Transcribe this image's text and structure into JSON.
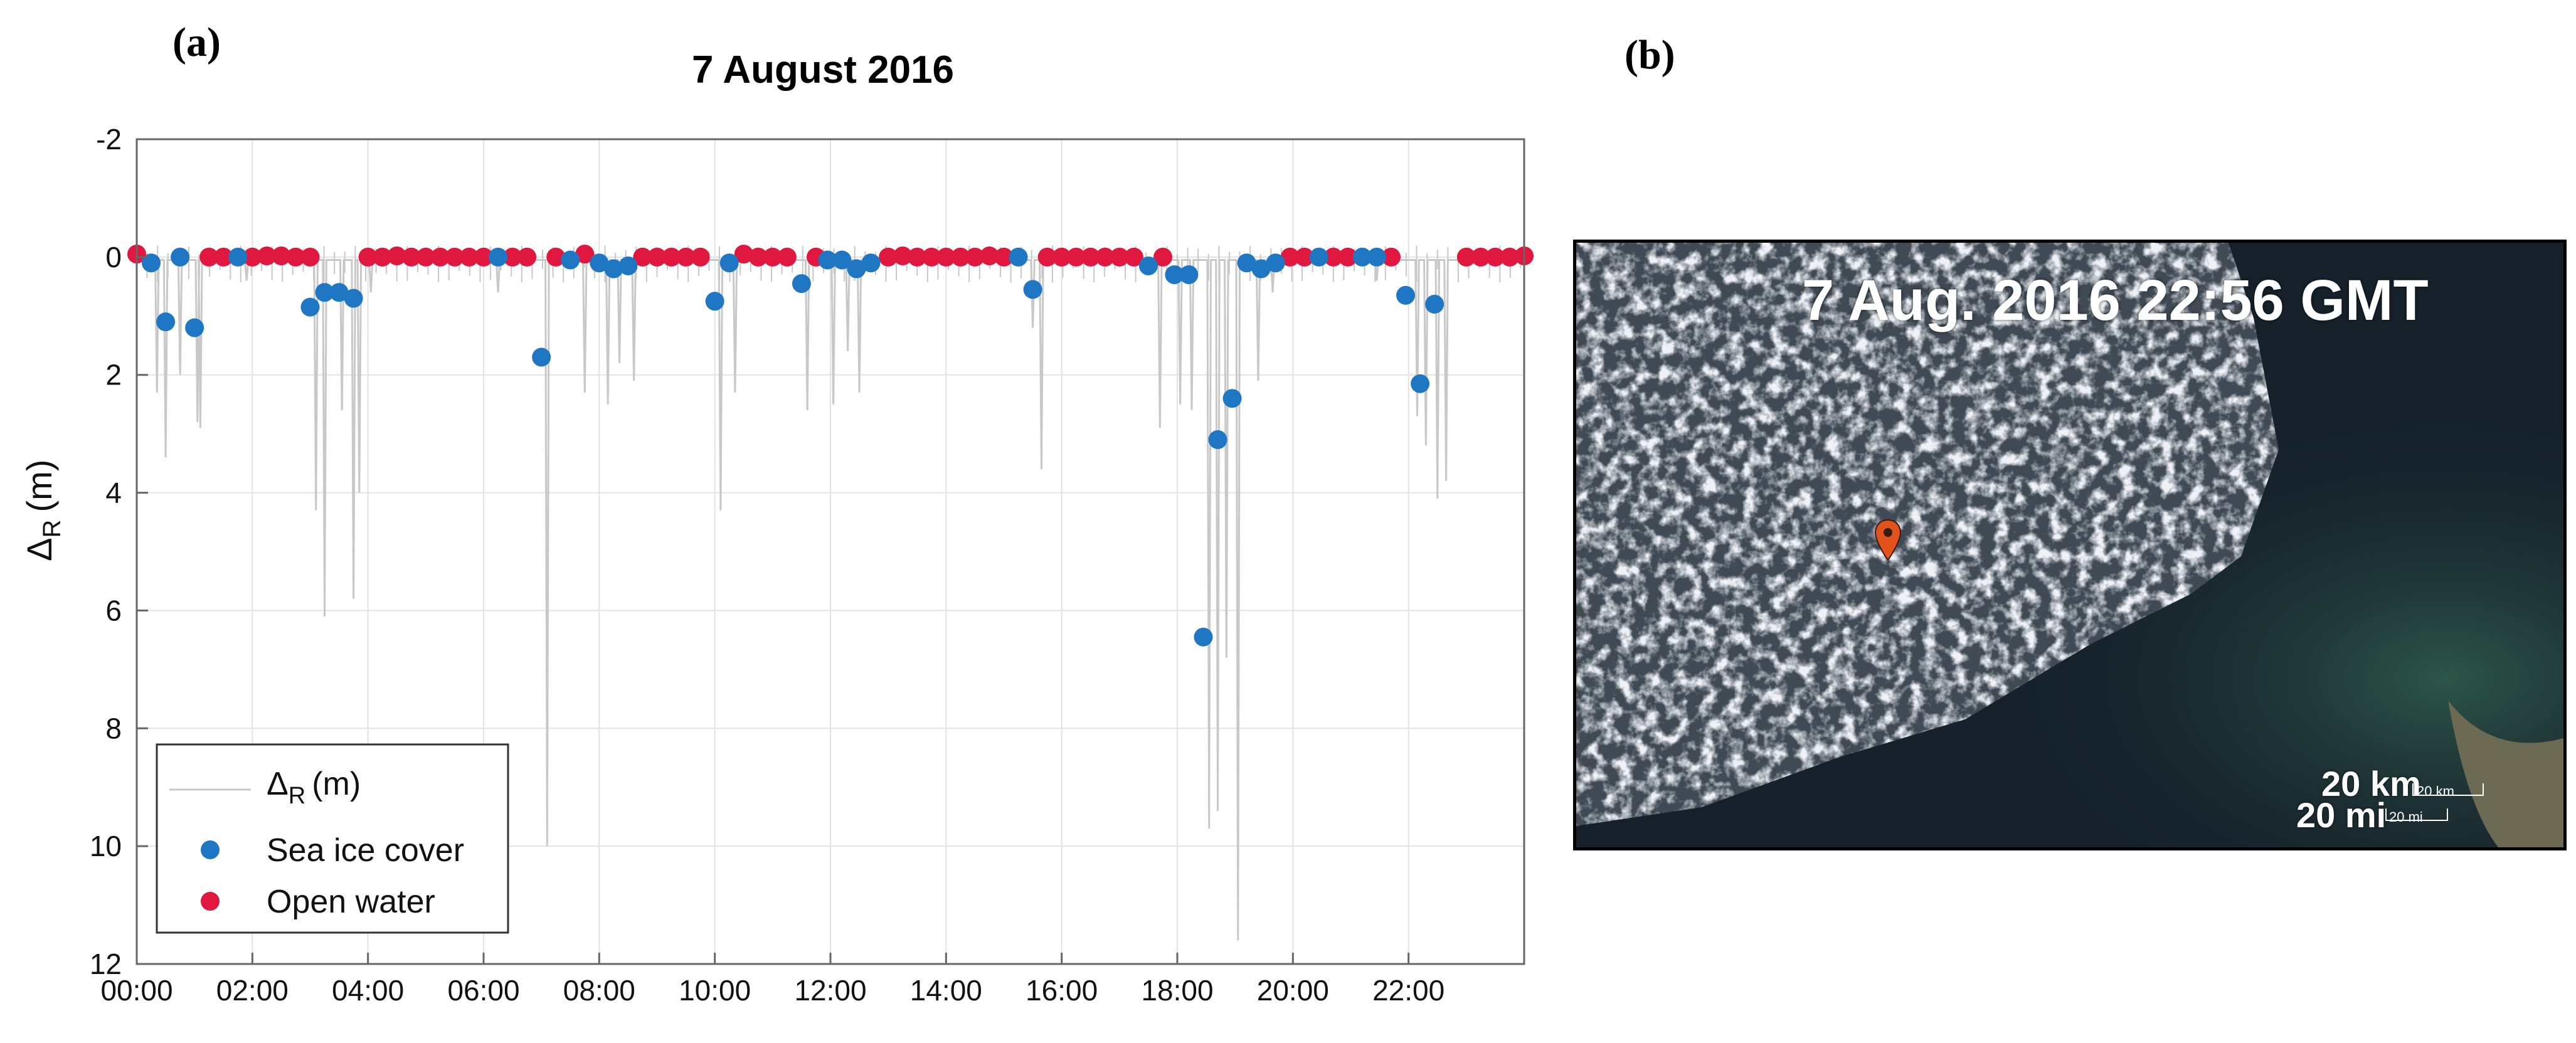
{
  "panel_a_label": "(a)",
  "panel_b_label": "(b)",
  "chart_data": {
    "type": "scatter",
    "title": "7 August 2016",
    "xlabel": "",
    "ylabel": "Δ",
    "ylabel_sub": "R",
    "ylabel_unit": "(m)",
    "x_unit": "hours",
    "xlim": [
      0,
      24
    ],
    "ylim": [
      -2,
      12
    ],
    "y_reversed": true,
    "x_ticks": [
      0,
      2,
      4,
      6,
      8,
      10,
      12,
      14,
      16,
      18,
      20,
      22
    ],
    "x_tick_labels": [
      "00:00",
      "02:00",
      "04:00",
      "06:00",
      "08:00",
      "10:00",
      "12:00",
      "14:00",
      "16:00",
      "18:00",
      "20:00",
      "22:00"
    ],
    "y_ticks": [
      -2,
      0,
      2,
      4,
      6,
      8,
      10,
      12
    ],
    "y_tick_labels": [
      "-2",
      "0",
      "2",
      "4",
      "6",
      "8",
      "10",
      "12"
    ],
    "grid": true,
    "legend_position": "bottom-left",
    "colors": {
      "raw": "#c8c8c8",
      "ice": "#1f77c4",
      "water": "#e0173f"
    },
    "series": [
      {
        "name": "Δ_R (m)",
        "legend_main": "Δ",
        "legend_sub": "R",
        "legend_unit": "(m)",
        "style": "line",
        "baseline": 0.05,
        "spikes": [
          [
            0.35,
            2.3
          ],
          [
            0.5,
            3.4
          ],
          [
            0.75,
            2.0
          ],
          [
            1.05,
            2.8
          ],
          [
            1.1,
            2.9
          ],
          [
            1.9,
            0.4
          ],
          [
            3.1,
            4.3
          ],
          [
            3.25,
            6.1
          ],
          [
            3.55,
            2.6
          ],
          [
            3.75,
            5.8
          ],
          [
            3.85,
            4.0
          ],
          [
            4.05,
            0.6
          ],
          [
            6.25,
            0.6
          ],
          [
            7.1,
            10.0
          ],
          [
            7.75,
            2.3
          ],
          [
            8.15,
            2.5
          ],
          [
            8.35,
            1.8
          ],
          [
            8.6,
            2.1
          ],
          [
            10.1,
            4.3
          ],
          [
            10.35,
            2.3
          ],
          [
            11.6,
            2.6
          ],
          [
            12.05,
            2.5
          ],
          [
            12.3,
            1.6
          ],
          [
            12.5,
            2.3
          ],
          [
            15.5,
            1.2
          ],
          [
            15.65,
            3.6
          ],
          [
            17.7,
            2.9
          ],
          [
            18.05,
            2.5
          ],
          [
            18.25,
            2.6
          ],
          [
            18.55,
            9.7
          ],
          [
            18.7,
            9.4
          ],
          [
            18.85,
            6.8
          ],
          [
            19.05,
            11.6
          ],
          [
            19.4,
            2.1
          ],
          [
            19.65,
            0.6
          ],
          [
            21.45,
            0.4
          ],
          [
            22.15,
            2.7
          ],
          [
            22.3,
            3.2
          ],
          [
            22.5,
            4.1
          ],
          [
            22.65,
            3.8
          ]
        ]
      },
      {
        "name": "Sea ice cover",
        "style": "marker",
        "points": [
          [
            0.25,
            0.1
          ],
          [
            0.5,
            1.1
          ],
          [
            0.75,
            0.0
          ],
          [
            1.0,
            1.2
          ],
          [
            1.75,
            0.0
          ],
          [
            3.0,
            0.85
          ],
          [
            3.25,
            0.6
          ],
          [
            3.5,
            0.6
          ],
          [
            3.75,
            0.7
          ],
          [
            6.25,
            0.0
          ],
          [
            7.0,
            1.7
          ],
          [
            7.5,
            0.05
          ],
          [
            8.0,
            0.1
          ],
          [
            8.25,
            0.2
          ],
          [
            8.5,
            0.15
          ],
          [
            10.0,
            0.75
          ],
          [
            10.25,
            0.1
          ],
          [
            11.5,
            0.45
          ],
          [
            11.95,
            0.05
          ],
          [
            12.2,
            0.05
          ],
          [
            12.45,
            0.2
          ],
          [
            12.7,
            0.1
          ],
          [
            15.25,
            0.0
          ],
          [
            15.5,
            0.55
          ],
          [
            17.5,
            0.15
          ],
          [
            17.95,
            0.3
          ],
          [
            18.2,
            0.3
          ],
          [
            18.45,
            6.45
          ],
          [
            18.7,
            3.1
          ],
          [
            18.95,
            2.4
          ],
          [
            19.2,
            0.1
          ],
          [
            19.45,
            0.2
          ],
          [
            19.7,
            0.1
          ],
          [
            20.45,
            0.0
          ],
          [
            21.2,
            0.0
          ],
          [
            21.45,
            0.0
          ],
          [
            21.95,
            0.65
          ],
          [
            22.2,
            2.15
          ],
          [
            22.45,
            0.8
          ]
        ]
      },
      {
        "name": "Open water",
        "style": "marker",
        "points": [
          [
            0.0,
            -0.05
          ],
          [
            1.25,
            0.0
          ],
          [
            1.5,
            0.0
          ],
          [
            2.0,
            0.0
          ],
          [
            2.25,
            -0.02
          ],
          [
            2.5,
            -0.02
          ],
          [
            2.75,
            0.0
          ],
          [
            3.0,
            0.0
          ],
          [
            4.0,
            0.0
          ],
          [
            4.25,
            0.0
          ],
          [
            4.5,
            -0.02
          ],
          [
            4.75,
            0.0
          ],
          [
            5.0,
            0.0
          ],
          [
            5.25,
            0.0
          ],
          [
            5.5,
            0.0
          ],
          [
            5.75,
            0.0
          ],
          [
            6.0,
            0.0
          ],
          [
            6.5,
            0.0
          ],
          [
            6.75,
            0.0
          ],
          [
            7.25,
            0.0
          ],
          [
            7.75,
            -0.05
          ],
          [
            8.75,
            0.0
          ],
          [
            9.0,
            0.0
          ],
          [
            9.25,
            0.0
          ],
          [
            9.5,
            0.0
          ],
          [
            9.75,
            0.0
          ],
          [
            10.5,
            -0.05
          ],
          [
            10.75,
            0.0
          ],
          [
            11.0,
            0.0
          ],
          [
            11.25,
            0.0
          ],
          [
            11.75,
            0.0
          ],
          [
            13.0,
            0.0
          ],
          [
            13.25,
            -0.02
          ],
          [
            13.5,
            0.0
          ],
          [
            13.75,
            0.0
          ],
          [
            14.0,
            0.0
          ],
          [
            14.25,
            0.0
          ],
          [
            14.5,
            0.0
          ],
          [
            14.75,
            -0.02
          ],
          [
            15.0,
            0.0
          ],
          [
            15.75,
            0.0
          ],
          [
            16.0,
            0.0
          ],
          [
            16.25,
            0.0
          ],
          [
            16.5,
            0.0
          ],
          [
            16.75,
            0.0
          ],
          [
            17.0,
            0.0
          ],
          [
            17.25,
            0.0
          ],
          [
            17.75,
            0.0
          ],
          [
            19.95,
            0.0
          ],
          [
            20.2,
            0.0
          ],
          [
            20.7,
            0.0
          ],
          [
            20.95,
            0.0
          ],
          [
            21.7,
            0.0
          ],
          [
            23.0,
            0.0
          ],
          [
            23.25,
            0.0
          ],
          [
            23.5,
            0.0
          ],
          [
            23.75,
            0.0
          ],
          [
            24.0,
            -0.02
          ]
        ]
      }
    ]
  },
  "map": {
    "title": "7 Aug. 2016 22:56 GMT",
    "scale_km_big": "20 km",
    "scale_mi_big": "20 mi",
    "scale_km_small": "20 km",
    "scale_mi_small": "20 mi",
    "marker_icon": "location-pin-icon",
    "marker_color": "#e2531c"
  }
}
